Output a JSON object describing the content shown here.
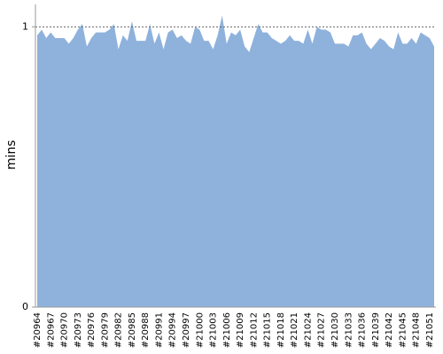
{
  "chart_data": {
    "type": "area",
    "y_label": "mins",
    "color": "#8fb2dc",
    "categories": [
      "#20964",
      null,
      null,
      "#20967",
      null,
      null,
      "#20970",
      null,
      null,
      "#20973",
      null,
      null,
      "#20976",
      null,
      null,
      "#20979",
      null,
      null,
      "#20982",
      null,
      null,
      "#20985",
      null,
      null,
      "#20988",
      null,
      null,
      "#20991",
      null,
      null,
      "#20994",
      null,
      null,
      "#20997",
      null,
      null,
      "#21000",
      null,
      null,
      "#21003",
      null,
      null,
      "#21006",
      null,
      null,
      "#21009",
      null,
      null,
      "#21012",
      null,
      null,
      "#21015",
      null,
      null,
      "#21018",
      null,
      null,
      "#21021",
      null,
      null,
      "#21024",
      null,
      null,
      "#21027",
      null,
      null,
      "#21030",
      null,
      null,
      "#21033",
      null,
      null,
      "#21036",
      null,
      null,
      "#21039",
      null,
      null,
      "#21042",
      null,
      null,
      "#21045",
      null,
      null,
      "#21048",
      null,
      null,
      "#21051",
      null
    ],
    "values": [
      0.97,
      0.99,
      0.96,
      0.98,
      0.96,
      0.96,
      0.96,
      0.94,
      0.96,
      0.99,
      1.01,
      0.93,
      0.96,
      0.98,
      0.98,
      0.98,
      0.99,
      1.01,
      0.92,
      0.97,
      0.95,
      1.02,
      0.95,
      0.95,
      0.95,
      1.01,
      0.94,
      0.98,
      0.92,
      0.98,
      0.99,
      0.96,
      0.97,
      0.95,
      0.94,
      1.0,
      0.99,
      0.95,
      0.95,
      0.92,
      0.97,
      1.04,
      0.94,
      0.98,
      0.97,
      0.99,
      0.93,
      0.91,
      0.96,
      1.01,
      0.98,
      0.98,
      0.96,
      0.95,
      0.94,
      0.95,
      0.97,
      0.95,
      0.95,
      0.94,
      0.99,
      0.94,
      1.0,
      0.99,
      0.99,
      0.98,
      0.94,
      0.94,
      0.94,
      0.93,
      0.97,
      0.97,
      0.98,
      0.94,
      0.92,
      0.94,
      0.96,
      0.95,
      0.93,
      0.92,
      0.98,
      0.94,
      0.94,
      0.96,
      0.94,
      0.98,
      0.97,
      0.96,
      0.93
    ],
    "ylim": [
      0,
      1.08
    ],
    "yticks": [
      0,
      1
    ],
    "grid": true
  }
}
